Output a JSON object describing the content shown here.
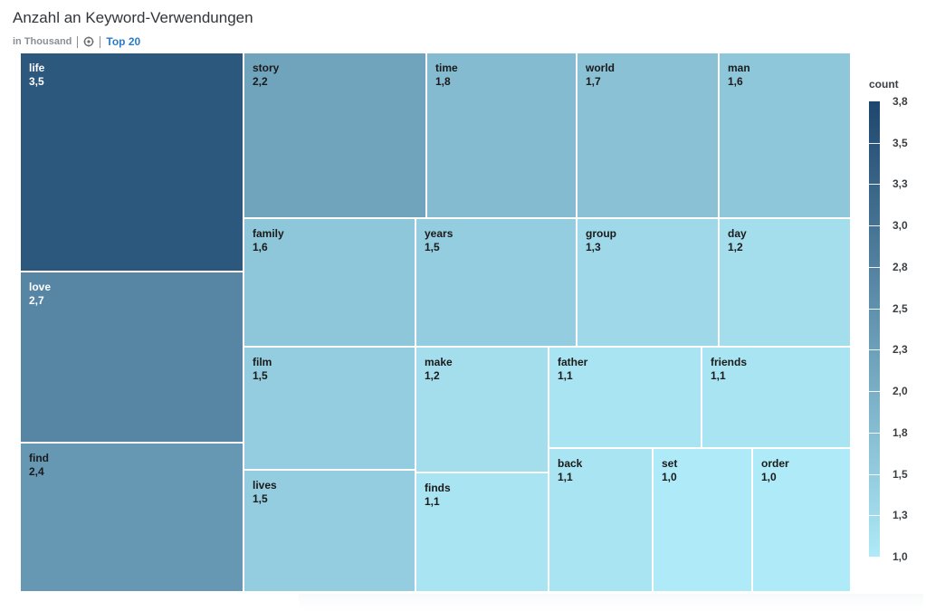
{
  "header": {
    "title": "Anzahl an Keyword-Verwendungen",
    "unit": "in Thousand",
    "top_link": "Top 20"
  },
  "legend": {
    "title": "count",
    "ticks": [
      "3,8",
      "3,5",
      "3,3",
      "3,0",
      "2,8",
      "2,5",
      "2,3",
      "2,0",
      "1,8",
      "1,5",
      "1,3",
      "1,0"
    ],
    "color_low": "#aeeaf7",
    "color_high": "#1e466e"
  },
  "chart_data": {
    "type": "treemap",
    "title": "Anzahl an Keyword-Verwendungen",
    "unit": "in Thousand",
    "color_measure": "count",
    "color_range": [
      1.0,
      3.8
    ],
    "items": [
      {
        "label": "life",
        "value": 3.5,
        "display": "3,5"
      },
      {
        "label": "love",
        "value": 2.7,
        "display": "2,7"
      },
      {
        "label": "find",
        "value": 2.4,
        "display": "2,4"
      },
      {
        "label": "story",
        "value": 2.2,
        "display": "2,2"
      },
      {
        "label": "time",
        "value": 1.8,
        "display": "1,8"
      },
      {
        "label": "world",
        "value": 1.7,
        "display": "1,7"
      },
      {
        "label": "man",
        "value": 1.6,
        "display": "1,6"
      },
      {
        "label": "family",
        "value": 1.6,
        "display": "1,6"
      },
      {
        "label": "years",
        "value": 1.5,
        "display": "1,5"
      },
      {
        "label": "group",
        "value": 1.3,
        "display": "1,3"
      },
      {
        "label": "day",
        "value": 1.2,
        "display": "1,2"
      },
      {
        "label": "film",
        "value": 1.5,
        "display": "1,5"
      },
      {
        "label": "make",
        "value": 1.2,
        "display": "1,2"
      },
      {
        "label": "father",
        "value": 1.1,
        "display": "1,1"
      },
      {
        "label": "friends",
        "value": 1.1,
        "display": "1,1"
      },
      {
        "label": "lives",
        "value": 1.5,
        "display": "1,5"
      },
      {
        "label": "finds",
        "value": 1.1,
        "display": "1,1"
      },
      {
        "label": "back",
        "value": 1.1,
        "display": "1,1"
      },
      {
        "label": "set",
        "value": 1.0,
        "display": "1,0"
      },
      {
        "label": "order",
        "value": 1.0,
        "display": "1,0"
      }
    ]
  }
}
